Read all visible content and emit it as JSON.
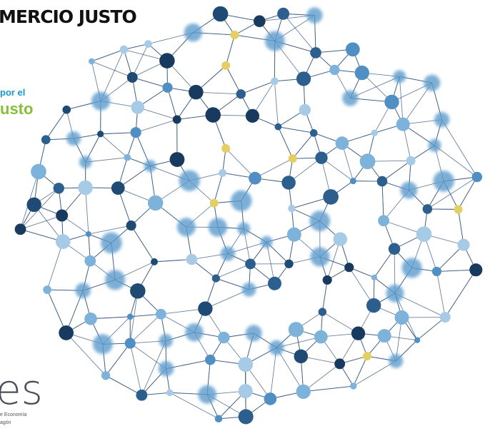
{
  "texts": {
    "heading": "MERCIO JUSTO",
    "tagline_top": "por el",
    "tagline_bottom": "usto",
    "logo": "es",
    "logo_line1": "e Economía",
    "logo_line2": "agón"
  }
}
